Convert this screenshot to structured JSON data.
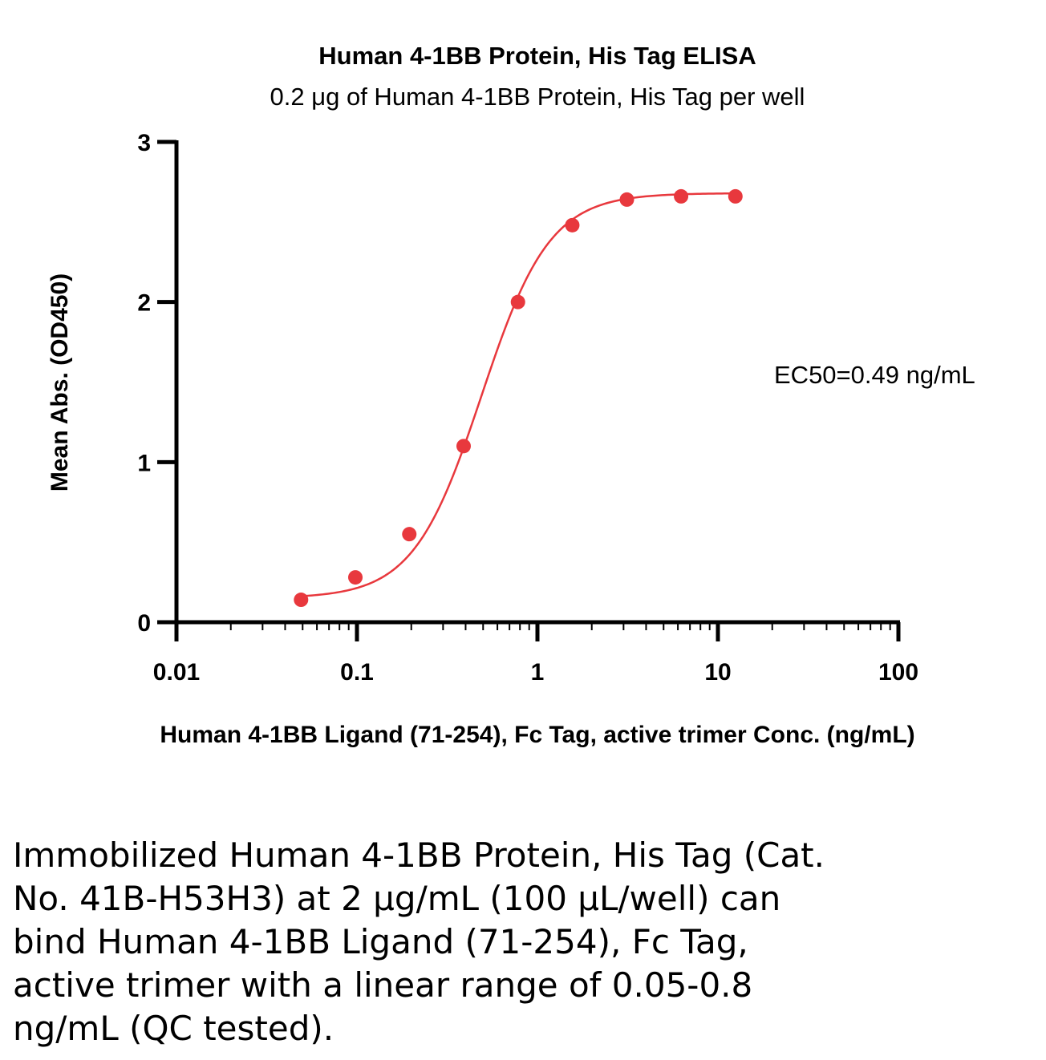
{
  "chart_data": {
    "type": "scatter",
    "title": "Human 4-1BB Protein, His Tag ELISA",
    "subtitle": "0.2 μg of Human 4-1BB Protein, His Tag per well",
    "xlabel": "Human 4-1BB Ligand (71-254), Fc Tag, active trimer Conc. (ng/mL)",
    "ylabel": "Mean Abs. (OD450)",
    "x_scale": "log",
    "xlim": [
      0.01,
      100
    ],
    "ylim": [
      0,
      3
    ],
    "x_ticks": [
      "0.01",
      "0.1",
      "1",
      "10",
      "100"
    ],
    "y_ticks": [
      "0",
      "1",
      "2",
      "3"
    ],
    "annotation": "EC50=0.49 ng/mL",
    "series": [
      {
        "color": "#e8383d",
        "points": [
          {
            "x": 0.049,
            "y": 0.14
          },
          {
            "x": 0.098,
            "y": 0.28
          },
          {
            "x": 0.195,
            "y": 0.55
          },
          {
            "x": 0.39,
            "y": 1.1
          },
          {
            "x": 0.78,
            "y": 2.0
          },
          {
            "x": 1.56,
            "y": 2.48
          },
          {
            "x": 3.13,
            "y": 2.64
          },
          {
            "x": 6.25,
            "y": 2.66
          },
          {
            "x": 12.5,
            "y": 2.66
          }
        ],
        "fit": {
          "model": "4PL",
          "bottom": 0.15,
          "top": 2.68,
          "ec50": 0.49,
          "hill": 2.3
        }
      }
    ],
    "grid": false,
    "legend": "none"
  },
  "caption": {
    "lines": [
      "Immobilized Human 4-1BB Protein, His Tag (Cat.",
      "No. 41B-H53H3) at 2 μg/mL (100 μL/well) can",
      "bind Human 4-1BB Ligand (71-254), Fc Tag,",
      "active trimer with a linear range of 0.05-0.8",
      "ng/mL (QC tested)."
    ]
  }
}
